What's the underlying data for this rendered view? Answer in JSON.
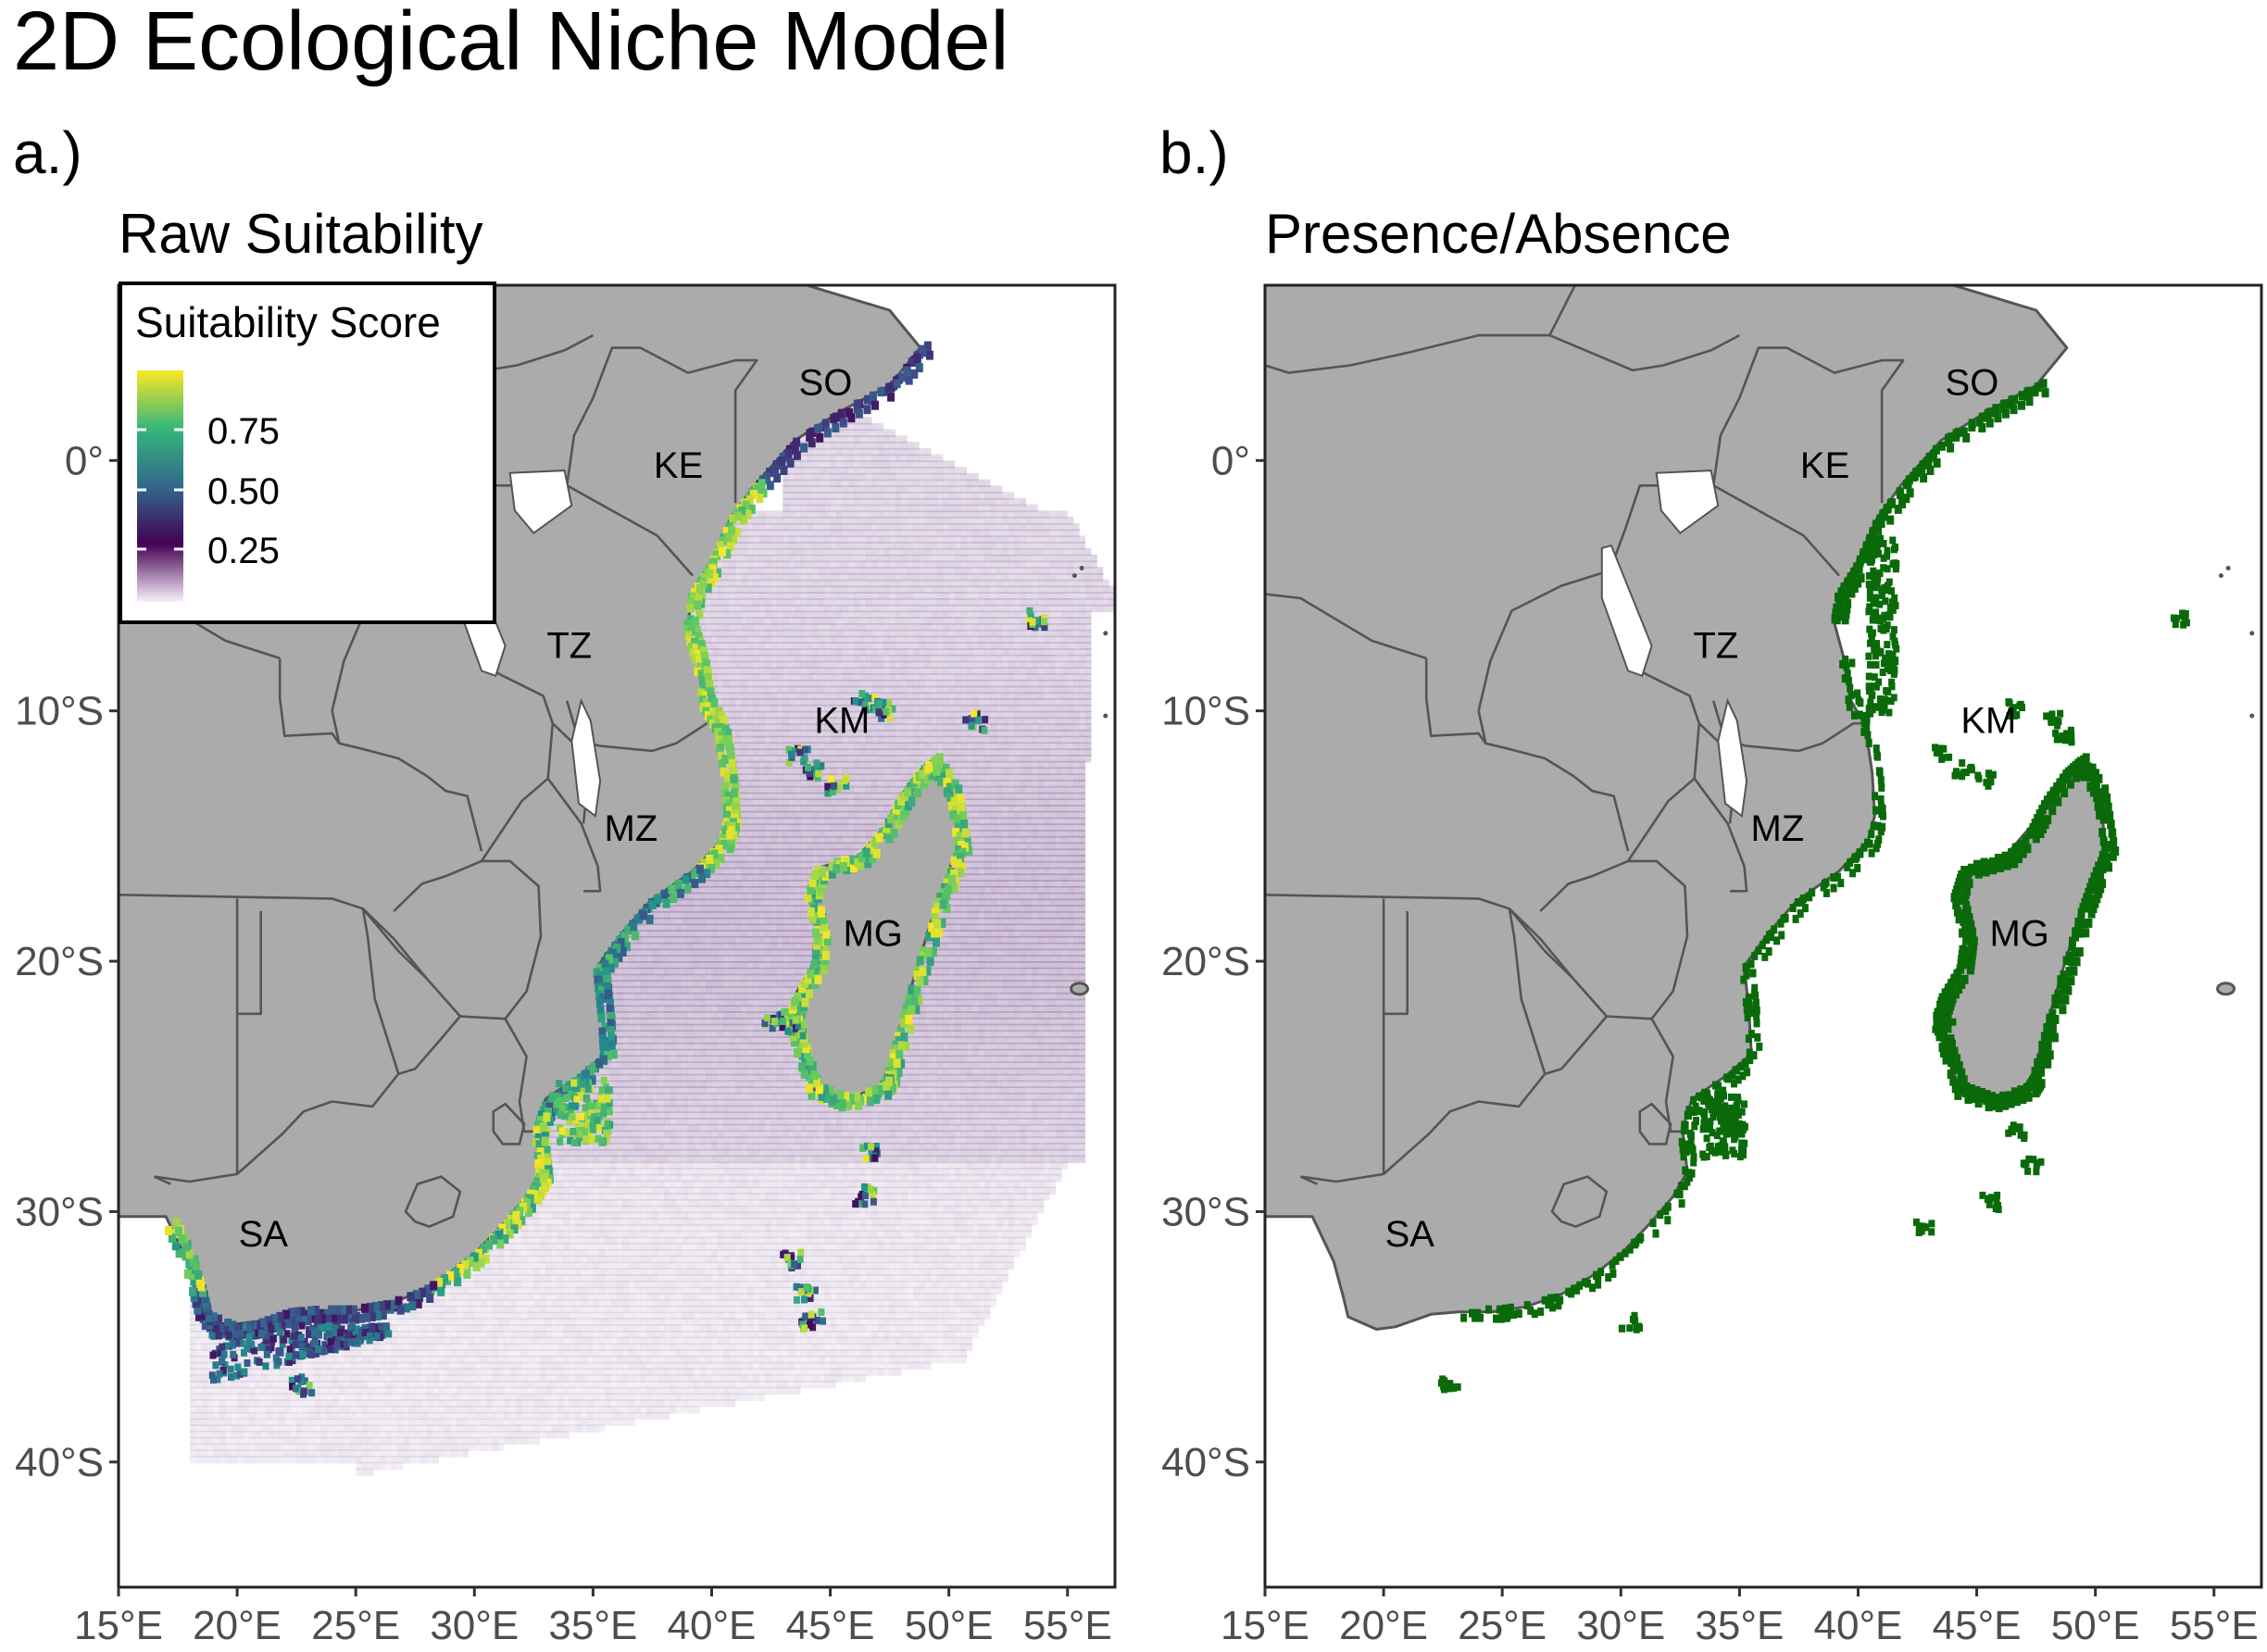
{
  "title": "2D Ecological Niche Model",
  "panels": [
    {
      "tag": "a.)",
      "title": "Raw Suitability"
    },
    {
      "tag": "b.)",
      "title": "Presence/Absence"
    }
  ],
  "legend": {
    "title": "Suitability Score",
    "breaks": [
      "0.75",
      "0.50",
      "0.25"
    ],
    "colors": [
      "#f8f0fa",
      "#440154",
      "#31688e",
      "#35b779",
      "#fde725"
    ]
  },
  "axes": {
    "x_ticks": [
      "15°E",
      "20°E",
      "25°E",
      "30°E",
      "35°E",
      "40°E",
      "45°E",
      "50°E",
      "55°E"
    ],
    "y_ticks": [
      "0°",
      "10°S",
      "20°S",
      "30°S",
      "40°S"
    ],
    "x_values": [
      15,
      20,
      25,
      30,
      35,
      40,
      45,
      50,
      55
    ],
    "y_values": [
      0,
      -10,
      -20,
      -30,
      -40
    ],
    "x_range": [
      15,
      57
    ],
    "y_range": [
      -45,
      7
    ]
  },
  "country_labels": [
    {
      "code": "SO",
      "lon": 44.8,
      "lat": 3.0
    },
    {
      "code": "KE",
      "lon": 38.6,
      "lat": -0.3
    },
    {
      "code": "TZ",
      "lon": 34.0,
      "lat": -7.5
    },
    {
      "code": "KM",
      "lon": 45.5,
      "lat": -10.5
    },
    {
      "code": "MZ",
      "lon": 36.6,
      "lat": -14.8
    },
    {
      "code": "MG",
      "lon": 46.8,
      "lat": -19.0
    },
    {
      "code": "SA",
      "lon": 21.1,
      "lat": -31.0
    }
  ],
  "colors": {
    "land": "#ababab",
    "border": "#555555",
    "presence": "#0a6a0a",
    "water": "#ffffff"
  }
}
